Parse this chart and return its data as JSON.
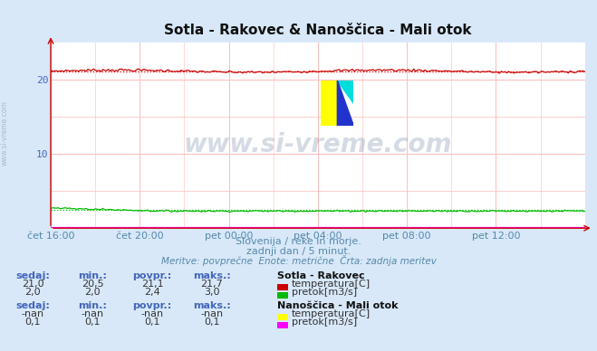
{
  "title": "Sotla - Rakovec & Nanoščica - Mali otok",
  "title_fontsize": 11,
  "bg_color": "#d8e8f8",
  "plot_bg_color": "#ffffff",
  "grid_color": "#ffbbbb",
  "axis_color": "#cc0000",
  "text_color": "#4466bb",
  "xlabel_color": "#5588aa",
  "n_points": 288,
  "ylim": [
    0,
    25
  ],
  "yticks": [
    10,
    20
  ],
  "xtick_labels": [
    "čet 16:00",
    "čet 20:00",
    "pet 00:00",
    "pet 04:00",
    "pet 08:00",
    "pet 12:00"
  ],
  "xtick_positions": [
    0.0,
    0.1667,
    0.3333,
    0.5,
    0.6667,
    0.8333
  ],
  "temp_rakovec_mean": 21.1,
  "temp_rakovec_min": 20.5,
  "temp_rakovec_max": 21.7,
  "flow_rakovec_mean": 2.4,
  "flow_rakovec_min": 2.0,
  "flow_rakovec_max": 3.0,
  "flow_nanoscica_val": 0.1,
  "temp_color": "#cc0000",
  "flow_rakovec_color": "#00bb00",
  "flow_nanoscica_color": "#ff00ff",
  "watermark": "www.si-vreme.com",
  "subtitle1": "Slovenija / reke in morje.",
  "subtitle2": "zadnji dan / 5 minut.",
  "subtitle3": "Meritve: povprečne  Enote: metrične  Črta: zadnja meritev",
  "station1_name": "Sotla - Rakovec",
  "station2_name": "Nanoščica - Mali otok",
  "label_sedaj": "sedaj:",
  "label_min": "min.:",
  "label_povpr": "povpr.:",
  "label_maks": "maks.:",
  "vals1_temp": [
    "21,0",
    "20,5",
    "21,1",
    "21,7"
  ],
  "vals1_flow": [
    "2,0",
    "2,0",
    "2,4",
    "3,0"
  ],
  "vals2_temp": [
    "-nan",
    "-nan",
    "-nan",
    "-nan"
  ],
  "vals2_flow": [
    "0,1",
    "0,1",
    "0,1",
    "0,1"
  ],
  "leg1_temp_label": "temperatura[C]",
  "leg1_flow_label": "pretok[m3/s]",
  "leg2_temp_label": "temperatura[C]",
  "leg2_flow_label": "pretok[m3/s]",
  "temp_rakovec_color_box": "#cc0000",
  "flow_rakovec_color_box": "#00bb00",
  "temp_nanoscica_color_box": "#ffff00",
  "flow_nanoscica_color_box": "#ff00ff",
  "sidebar_text": "www.si-vreme.com",
  "sidebar_color": "#aabbcc"
}
